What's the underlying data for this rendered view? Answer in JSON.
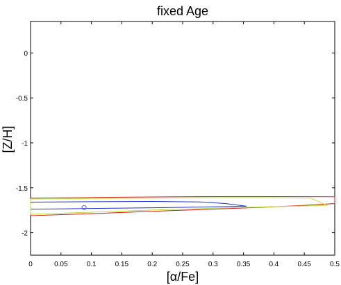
{
  "chart_data": {
    "type": "line",
    "title": "fixed Age",
    "xlabel": "[α/Fe]",
    "ylabel": "[Z/H]",
    "xlim": [
      0,
      0.5
    ],
    "ylim": [
      -2.25,
      0.35
    ],
    "xticks": [
      0,
      0.05,
      0.1,
      0.15,
      0.2,
      0.25,
      0.3,
      0.35,
      0.4,
      0.45,
      0.5
    ],
    "xtick_labels": [
      "0",
      "0.05",
      "0.1",
      "0.15",
      "0.2",
      "0.25",
      "0.3",
      "0.35",
      "0.4",
      "0.45",
      "0.5"
    ],
    "yticks": [
      0,
      -0.5,
      -1,
      -1.5,
      -2
    ],
    "ytick_labels": [
      "0",
      "-0.5",
      "-1",
      "-1.5",
      "-2"
    ],
    "grid": false,
    "series": [
      {
        "color": "#d01c1c",
        "points": [
          [
            0,
            -1.615
          ],
          [
            0.1,
            -1.608
          ],
          [
            0.2,
            -1.602
          ],
          [
            0.3,
            -1.598
          ],
          [
            0.4,
            -1.598
          ],
          [
            0.5,
            -1.6
          ],
          [
            0.5,
            -1.675
          ],
          [
            0.45,
            -1.695
          ],
          [
            0.4,
            -1.712
          ],
          [
            0.3,
            -1.738
          ],
          [
            0.2,
            -1.762
          ],
          [
            0.1,
            -1.788
          ],
          [
            0,
            -1.81
          ],
          [
            0,
            -1.615
          ]
        ]
      },
      {
        "color": "#b8e03a",
        "points": [
          [
            0,
            -1.625
          ],
          [
            0.1,
            -1.62
          ],
          [
            0.2,
            -1.615
          ],
          [
            0.3,
            -1.61
          ],
          [
            0.4,
            -1.61
          ],
          [
            0.46,
            -1.615
          ],
          [
            0.472,
            -1.65
          ],
          [
            0.488,
            -1.695
          ],
          [
            0.45,
            -1.702
          ],
          [
            0.4,
            -1.71
          ],
          [
            0.3,
            -1.728
          ],
          [
            0.2,
            -1.748
          ],
          [
            0.1,
            -1.772
          ],
          [
            0,
            -1.795
          ],
          [
            0,
            -1.625
          ]
        ]
      },
      {
        "color": "#1f2fd0",
        "points": [
          [
            0,
            -1.66
          ],
          [
            0.1,
            -1.655
          ],
          [
            0.2,
            -1.652
          ],
          [
            0.28,
            -1.658
          ],
          [
            0.32,
            -1.675
          ],
          [
            0.355,
            -1.705
          ],
          [
            0.3,
            -1.712
          ],
          [
            0.2,
            -1.722
          ],
          [
            0.1,
            -1.73
          ],
          [
            0.05,
            -1.735
          ],
          [
            0,
            -1.738
          ]
        ]
      }
    ],
    "marker": {
      "x": 0.088,
      "y": -1.72,
      "color": "#5555dd",
      "shape": "circle"
    }
  }
}
